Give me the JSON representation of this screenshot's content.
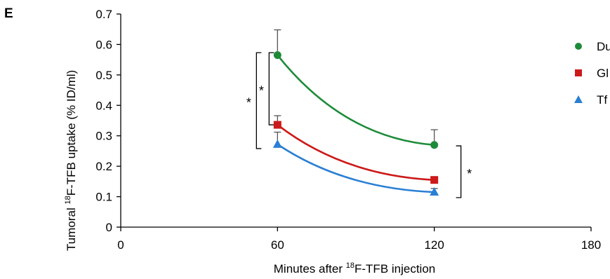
{
  "panel_label": "E",
  "chart_data": {
    "type": "line",
    "xlabel_main": "Minutes after ",
    "xlabel_sup": "18",
    "xlabel_tail": "F-TFB injection",
    "ylabel_main": "Tumoral ",
    "ylabel_sup": "18",
    "ylabel_tail": "F-TFB uptake (% ID/ml)",
    "xlim": [
      0,
      180
    ],
    "ylim": [
      0,
      0.7
    ],
    "x_ticks": [
      0,
      60,
      120,
      180
    ],
    "y_ticks": [
      0,
      0.1,
      0.2,
      0.3,
      0.4,
      0.5,
      0.6,
      0.7
    ],
    "y_tick_labels": [
      "0",
      "0.1",
      "0.2",
      "0.3",
      "0.4",
      "0.5",
      "0.6",
      "0.7"
    ],
    "x_tick_labels": [
      "0",
      "60",
      "120",
      "180"
    ],
    "series": [
      {
        "name": "Du",
        "color": "#1e8b3a",
        "marker": "circle",
        "x": [
          60,
          120
        ],
        "y": [
          0.565,
          0.27
        ],
        "err": [
          0.083,
          0.05
        ]
      },
      {
        "name": "Gl",
        "color": "#cc1a1a",
        "marker": "square",
        "x": [
          60,
          120
        ],
        "y": [
          0.336,
          0.155
        ],
        "err": [
          0.03,
          0.0
        ]
      },
      {
        "name": "Tf",
        "color": "#2a7fd4",
        "marker": "triangle",
        "x": [
          60,
          120
        ],
        "y": [
          0.272,
          0.115
        ],
        "err": [
          0.04,
          0.012
        ]
      }
    ],
    "significance": [
      {
        "label": "*",
        "side": "left",
        "at_x": 60,
        "from_y": 0.258,
        "to_y": 0.573
      },
      {
        "label": "*",
        "side": "left",
        "at_x": 60,
        "from_y": 0.336,
        "to_y": 0.573
      },
      {
        "label": "*",
        "side": "right",
        "at_x": 120,
        "from_y": 0.097,
        "to_y": 0.267
      }
    ]
  }
}
